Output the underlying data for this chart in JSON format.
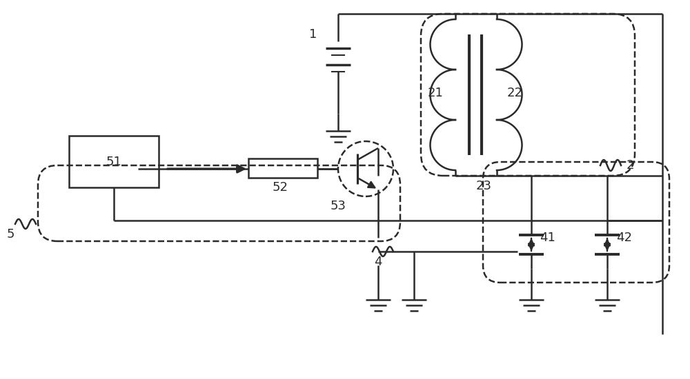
{
  "bg_color": "#ffffff",
  "lc": "#2a2a2a",
  "fig_width": 10.0,
  "fig_height": 5.5,
  "dpi": 100
}
